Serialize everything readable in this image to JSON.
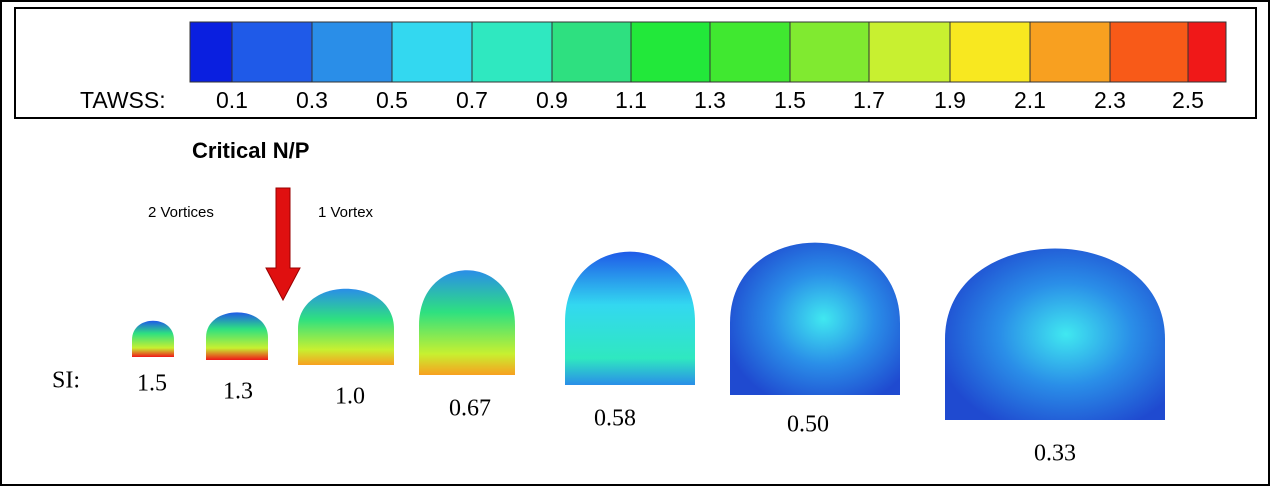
{
  "colorbar": {
    "label": "TAWSS:",
    "colors": [
      "#0a1fe0",
      "#1f5ae8",
      "#2a8ee8",
      "#33d8f0",
      "#2fe8c0",
      "#2ee080",
      "#22e83a",
      "#40e830",
      "#80ea30",
      "#c8f030",
      "#f8e820",
      "#f8a020",
      "#f85a18",
      "#f01818"
    ],
    "ticks": [
      "0.1",
      "0.3",
      "0.5",
      "0.7",
      "0.9",
      "1.1",
      "1.3",
      "1.5",
      "1.7",
      "1.9",
      "2.1",
      "2.3",
      "2.5"
    ]
  },
  "annotations": {
    "critical": "Critical N/P",
    "left": "2 Vortices",
    "right": "1 Vortex"
  },
  "si": {
    "label": "SI:",
    "values": [
      "1.5",
      "1.3",
      "1.0",
      "0.67",
      "0.58",
      "0.50",
      "0.33"
    ]
  }
}
